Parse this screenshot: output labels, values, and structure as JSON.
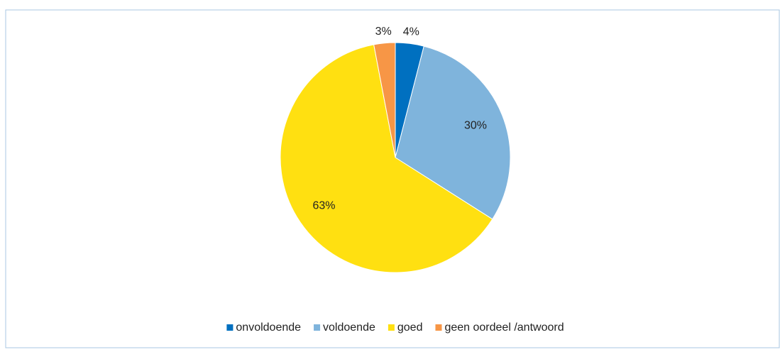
{
  "chart_data": {
    "type": "pie",
    "categories": [
      "onvoldoende",
      "voldoende",
      "goed",
      "geen oordeel /antwoord"
    ],
    "values": [
      4,
      30,
      63,
      3
    ],
    "value_labels": [
      "4%",
      "30%",
      "63%",
      "3%"
    ],
    "colors": [
      "#0070c0",
      "#7fb4dc",
      "#ffe011",
      "#f79646"
    ],
    "legend": "bottom"
  }
}
